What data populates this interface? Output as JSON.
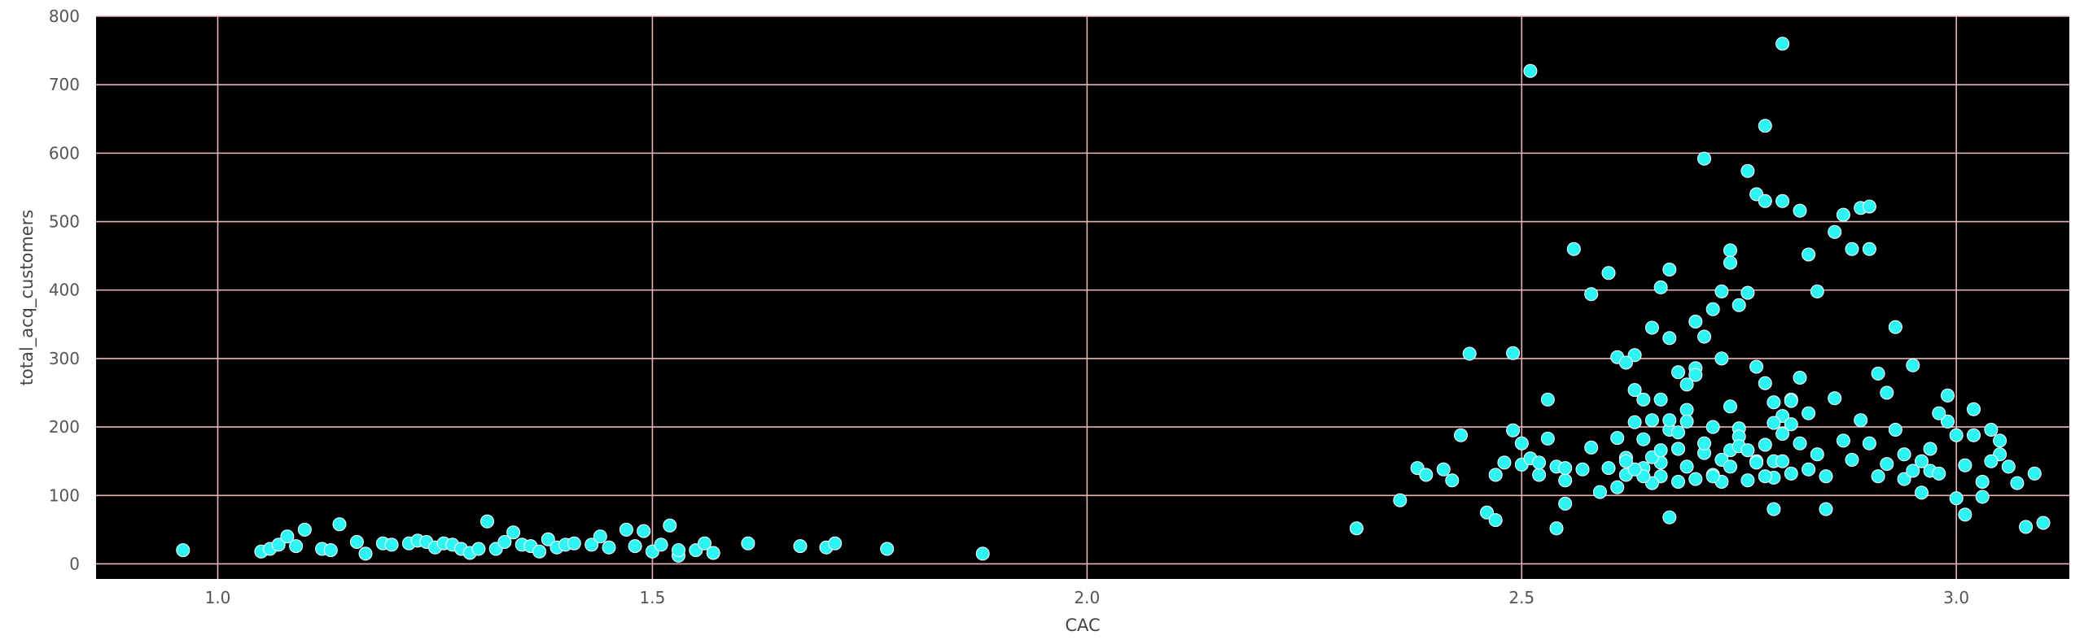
{
  "chart_data": {
    "type": "scatter",
    "title": "",
    "xlabel": "CAC",
    "ylabel": "total_acq_customers",
    "xlim": [
      0.86,
      3.13
    ],
    "ylim": [
      -22,
      800
    ],
    "xticks": [
      1.0,
      1.5,
      2.0,
      2.5,
      3.0
    ],
    "xtick_labels": [
      "1.0",
      "1.5",
      "2.0",
      "2.5",
      "3.0"
    ],
    "yticks": [
      0,
      100,
      200,
      300,
      400,
      500,
      600,
      700,
      800
    ],
    "ytick_labels": [
      "0",
      "100",
      "200",
      "300",
      "400",
      "500",
      "600",
      "700",
      "800"
    ],
    "grid": true,
    "colors": {
      "plot_background": "#000000",
      "grid": "#e8b4b8",
      "marker": "#2ff4f4",
      "marker_edge": "#ffffff",
      "tick_text": "#555555"
    },
    "series": [
      {
        "points": [
          [
            0.96,
            20
          ],
          [
            1.05,
            18
          ],
          [
            1.06,
            22
          ],
          [
            1.07,
            28
          ],
          [
            1.08,
            40
          ],
          [
            1.09,
            26
          ],
          [
            1.1,
            50
          ],
          [
            1.12,
            22
          ],
          [
            1.13,
            20
          ],
          [
            1.14,
            58
          ],
          [
            1.16,
            32
          ],
          [
            1.17,
            15
          ],
          [
            1.19,
            30
          ],
          [
            1.2,
            28
          ],
          [
            1.22,
            30
          ],
          [
            1.23,
            34
          ],
          [
            1.24,
            32
          ],
          [
            1.25,
            24
          ],
          [
            1.26,
            30
          ],
          [
            1.27,
            28
          ],
          [
            1.28,
            22
          ],
          [
            1.29,
            16
          ],
          [
            1.3,
            22
          ],
          [
            1.31,
            62
          ],
          [
            1.32,
            22
          ],
          [
            1.33,
            32
          ],
          [
            1.34,
            46
          ],
          [
            1.35,
            28
          ],
          [
            1.36,
            26
          ],
          [
            1.37,
            18
          ],
          [
            1.38,
            36
          ],
          [
            1.39,
            24
          ],
          [
            1.4,
            28
          ],
          [
            1.41,
            30
          ],
          [
            1.43,
            28
          ],
          [
            1.44,
            40
          ],
          [
            1.45,
            24
          ],
          [
            1.47,
            50
          ],
          [
            1.48,
            26
          ],
          [
            1.49,
            48
          ],
          [
            1.5,
            18
          ],
          [
            1.51,
            28
          ],
          [
            1.52,
            56
          ],
          [
            1.53,
            12
          ],
          [
            1.53,
            20
          ],
          [
            1.55,
            20
          ],
          [
            1.56,
            30
          ],
          [
            1.57,
            16
          ],
          [
            1.61,
            30
          ],
          [
            1.67,
            26
          ],
          [
            1.7,
            24
          ],
          [
            1.71,
            30
          ],
          [
            1.77,
            22
          ],
          [
            1.88,
            15
          ],
          [
            2.31,
            52
          ],
          [
            2.36,
            93
          ],
          [
            2.38,
            140
          ],
          [
            2.39,
            130
          ],
          [
            2.41,
            138
          ],
          [
            2.42,
            122
          ],
          [
            2.43,
            188
          ],
          [
            2.44,
            307
          ],
          [
            2.46,
            75
          ],
          [
            2.47,
            64
          ],
          [
            2.47,
            130
          ],
          [
            2.48,
            148
          ],
          [
            2.49,
            195
          ],
          [
            2.5,
            145
          ],
          [
            2.51,
            720
          ],
          [
            2.49,
            308
          ],
          [
            2.5,
            176
          ],
          [
            2.51,
            154
          ],
          [
            2.52,
            130
          ],
          [
            2.53,
            240
          ],
          [
            2.52,
            148
          ],
          [
            2.53,
            183
          ],
          [
            2.54,
            142
          ],
          [
            2.55,
            122
          ],
          [
            2.55,
            140
          ],
          [
            2.54,
            52
          ],
          [
            2.55,
            88
          ],
          [
            2.56,
            460
          ],
          [
            2.57,
            138
          ],
          [
            2.58,
            170
          ],
          [
            2.58,
            394
          ],
          [
            2.59,
            105
          ],
          [
            2.6,
            140
          ],
          [
            2.6,
            425
          ],
          [
            2.61,
            112
          ],
          [
            2.62,
            130
          ],
          [
            2.61,
            184
          ],
          [
            2.62,
            155
          ],
          [
            2.63,
            207
          ],
          [
            2.63,
            305
          ],
          [
            2.64,
            140
          ],
          [
            2.65,
            345
          ],
          [
            2.66,
            148
          ],
          [
            2.66,
            404
          ],
          [
            2.67,
            68
          ],
          [
            2.67,
            430
          ],
          [
            2.68,
            120
          ],
          [
            2.68,
            168
          ],
          [
            2.69,
            225
          ],
          [
            2.7,
            286
          ],
          [
            2.71,
            592
          ],
          [
            2.72,
            130
          ],
          [
            2.73,
            300
          ],
          [
            2.74,
            166
          ],
          [
            2.74,
            458
          ],
          [
            2.75,
            198
          ],
          [
            2.76,
            574
          ],
          [
            2.77,
            540
          ],
          [
            2.78,
            530
          ],
          [
            2.78,
            640
          ],
          [
            2.79,
            80
          ],
          [
            2.79,
            150
          ],
          [
            2.8,
            530
          ],
          [
            2.8,
            760
          ],
          [
            2.81,
            240
          ],
          [
            2.82,
            516
          ],
          [
            2.83,
            452
          ],
          [
            2.84,
            398
          ],
          [
            2.85,
            80
          ],
          [
            2.86,
            485
          ],
          [
            2.87,
            510
          ],
          [
            2.88,
            460
          ],
          [
            2.89,
            520
          ],
          [
            2.9,
            522
          ],
          [
            2.9,
            460
          ],
          [
            2.91,
            278
          ],
          [
            2.92,
            250
          ],
          [
            2.93,
            346
          ],
          [
            2.94,
            124
          ],
          [
            2.95,
            290
          ],
          [
            2.96,
            150
          ],
          [
            2.97,
            136
          ],
          [
            2.98,
            132
          ],
          [
            2.99,
            208
          ],
          [
            3.0,
            96
          ],
          [
            3.01,
            72
          ],
          [
            3.02,
            188
          ],
          [
            3.03,
            120
          ],
          [
            3.04,
            196
          ],
          [
            3.05,
            160
          ],
          [
            2.61,
            302
          ],
          [
            2.62,
            294
          ],
          [
            2.63,
            254
          ],
          [
            2.64,
            240
          ],
          [
            2.65,
            210
          ],
          [
            2.66,
            240
          ],
          [
            2.67,
            330
          ],
          [
            2.68,
            280
          ],
          [
            2.69,
            262
          ],
          [
            2.7,
            276
          ],
          [
            2.71,
            162
          ],
          [
            2.72,
            200
          ],
          [
            2.73,
            120
          ],
          [
            2.74,
            230
          ],
          [
            2.75,
            186
          ],
          [
            2.76,
            122
          ],
          [
            2.77,
            150
          ],
          [
            2.78,
            174
          ],
          [
            2.79,
            126
          ],
          [
            2.8,
            190
          ],
          [
            2.81,
            238
          ],
          [
            2.82,
            272
          ],
          [
            2.83,
            220
          ],
          [
            2.84,
            160
          ],
          [
            2.85,
            128
          ],
          [
            2.86,
            242
          ],
          [
            2.87,
            180
          ],
          [
            2.88,
            152
          ],
          [
            2.89,
            210
          ],
          [
            2.9,
            176
          ],
          [
            2.91,
            128
          ],
          [
            2.92,
            146
          ],
          [
            2.93,
            196
          ],
          [
            2.94,
            160
          ],
          [
            2.95,
            136
          ],
          [
            2.96,
            104
          ],
          [
            2.97,
            168
          ],
          [
            2.98,
            220
          ],
          [
            2.99,
            246
          ],
          [
            3.0,
            188
          ],
          [
            3.01,
            144
          ],
          [
            3.02,
            226
          ],
          [
            3.03,
            98
          ],
          [
            3.04,
            150
          ],
          [
            3.05,
            180
          ],
          [
            3.06,
            142
          ],
          [
            3.07,
            118
          ],
          [
            3.08,
            54
          ],
          [
            3.09,
            132
          ],
          [
            3.1,
            60
          ],
          [
            2.64,
            182
          ],
          [
            2.65,
            156
          ],
          [
            2.66,
            128
          ],
          [
            2.67,
            196
          ],
          [
            2.68,
            168
          ],
          [
            2.69,
            142
          ],
          [
            2.7,
            354
          ],
          [
            2.71,
            332
          ],
          [
            2.72,
            372
          ],
          [
            2.73,
            398
          ],
          [
            2.74,
            440
          ],
          [
            2.75,
            378
          ],
          [
            2.76,
            396
          ],
          [
            2.77,
            288
          ],
          [
            2.78,
            264
          ],
          [
            2.79,
            236
          ],
          [
            2.8,
            216
          ],
          [
            2.81,
            204
          ],
          [
            2.82,
            176
          ],
          [
            2.83,
            138
          ],
          [
            2.72,
            128
          ],
          [
            2.73,
            152
          ],
          [
            2.74,
            142
          ],
          [
            2.75,
            172
          ],
          [
            2.76,
            166
          ],
          [
            2.77,
            148
          ],
          [
            2.78,
            128
          ],
          [
            2.79,
            206
          ],
          [
            2.8,
            150
          ],
          [
            2.81,
            132
          ],
          [
            2.7,
            124
          ],
          [
            2.71,
            176
          ],
          [
            2.69,
            208
          ],
          [
            2.68,
            192
          ],
          [
            2.67,
            210
          ],
          [
            2.66,
            166
          ],
          [
            2.65,
            118
          ],
          [
            2.64,
            128
          ],
          [
            2.63,
            138
          ],
          [
            2.62,
            150
          ]
        ]
      }
    ]
  }
}
